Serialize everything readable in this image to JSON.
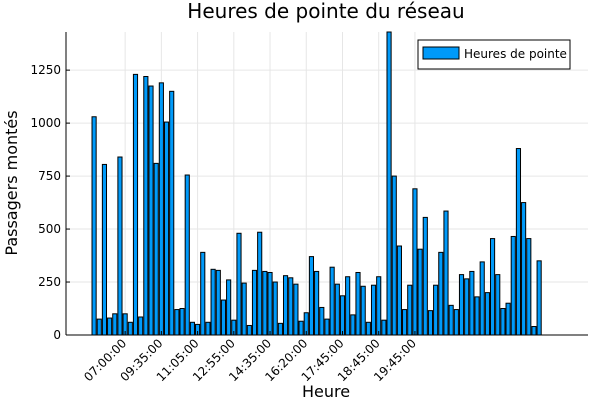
{
  "chart_data": {
    "type": "bar",
    "title": "Heures de pointe du réseau",
    "xlabel": "Heure",
    "ylabel": "Passagers montés",
    "ylim": [
      0,
      1430
    ],
    "yticks": [
      0,
      250,
      500,
      750,
      1000,
      1250
    ],
    "xtick_labels": [
      "07:00:00",
      "09:35:00",
      "11:05:00",
      "12:55:00",
      "14:35:00",
      "16:20:00",
      "17:45:00",
      "18:45:00",
      "19:45:00"
    ],
    "xtick_positions": [
      6,
      13,
      20,
      27,
      34,
      41,
      48,
      55,
      62
    ],
    "grid": true,
    "legend_position": "top-right",
    "color": "#009af9",
    "series": [
      {
        "name": "Heures de pointe",
        "values": [
          1030,
          75,
          805,
          80,
          100,
          840,
          100,
          60,
          1230,
          85,
          1220,
          1175,
          810,
          1190,
          1005,
          1150,
          120,
          125,
          755,
          60,
          50,
          390,
          60,
          310,
          305,
          165,
          260,
          70,
          480,
          245,
          45,
          305,
          485,
          300,
          295,
          250,
          55,
          280,
          270,
          240,
          65,
          105,
          370,
          300,
          130,
          75,
          320,
          240,
          185,
          275,
          95,
          295,
          230,
          60,
          235,
          275,
          70,
          1430,
          750,
          420,
          120,
          235,
          690,
          405,
          555,
          115,
          235,
          390,
          585,
          140,
          120,
          285,
          265,
          300,
          180,
          345,
          200,
          455,
          285,
          125,
          150,
          465,
          880,
          625,
          455,
          40,
          350
        ]
      }
    ]
  }
}
